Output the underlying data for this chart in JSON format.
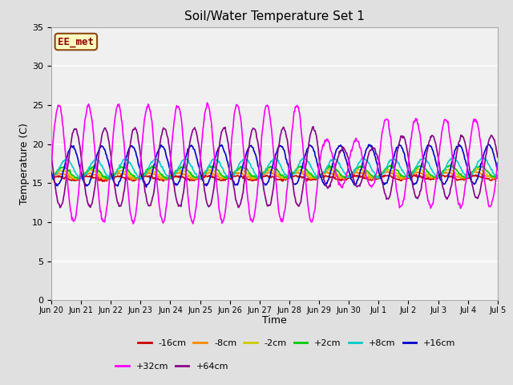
{
  "title": "Soil/Water Temperature Set 1",
  "xlabel": "Time",
  "ylabel": "Temperature (C)",
  "ylim": [
    0,
    35
  ],
  "yticks": [
    0,
    5,
    10,
    15,
    20,
    25,
    30,
    35
  ],
  "annotation_text": "EE_met",
  "annotation_bg": "#ffffc0",
  "annotation_border": "#8b4513",
  "fig_bg": "#e0e0e0",
  "plot_bg": "#e8e8e8",
  "plot_bg_upper": "#f0f0f0",
  "series_order": [
    "-16cm",
    "-8cm",
    "-2cm",
    "+2cm",
    "+8cm",
    "+16cm",
    "+64cm",
    "+32cm"
  ],
  "series": {
    "-16cm": {
      "color": "#cc0000",
      "lw": 1.2,
      "base": 15.6,
      "amp": 0.25,
      "phase": 0.0,
      "trend": 0.008
    },
    "-8cm": {
      "color": "#ff8800",
      "lw": 1.2,
      "base": 15.9,
      "amp": 0.35,
      "phase": 0.05,
      "trend": 0.01
    },
    "-2cm": {
      "color": "#cccc00",
      "lw": 1.2,
      "base": 16.1,
      "amp": 0.5,
      "phase": 0.1,
      "trend": 0.012
    },
    "+2cm": {
      "color": "#00cc00",
      "lw": 1.2,
      "base": 16.3,
      "amp": 0.7,
      "phase": 0.15,
      "trend": 0.014
    },
    "+8cm": {
      "color": "#00cccc",
      "lw": 1.2,
      "base": 16.8,
      "amp": 1.2,
      "phase": 0.25,
      "trend": 0.015
    },
    "+16cm": {
      "color": "#0000cc",
      "lw": 1.2,
      "base": 17.2,
      "amp": 2.5,
      "phase": 0.45,
      "trend": 0.015
    },
    "+32cm": {
      "color": "#ff00ff",
      "lw": 1.2,
      "base": 17.5,
      "amp": 7.5,
      "phase": 0.0,
      "trend": 0.005
    },
    "+64cm": {
      "color": "#880088",
      "lw": 1.2,
      "base": 17.0,
      "amp": 5.0,
      "phase": 0.55,
      "trend": 0.005
    }
  },
  "tick_positions": [
    0,
    1,
    2,
    3,
    4,
    5,
    6,
    7,
    8,
    9,
    10,
    11,
    12,
    13,
    14,
    15
  ],
  "tick_labels": [
    "Jun 20",
    "Jun 21",
    "Jun 22",
    "Jun 23",
    "Jun 24",
    "Jun 25",
    "Jun 26",
    "Jun 27",
    "Jun 28",
    "Jun 29",
    "Jun 30",
    "Jul 1",
    "Jul 2",
    "Jul 3",
    "Jul 4",
    "Jul 5"
  ],
  "n_days": 15,
  "pts_per_day": 48,
  "random_seed": 10
}
